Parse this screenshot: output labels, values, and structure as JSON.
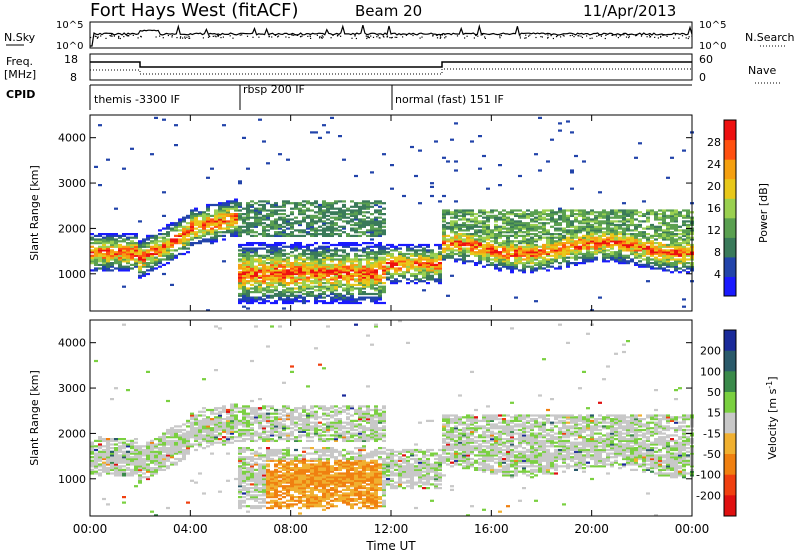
{
  "header": {
    "title": "Fort Hays West (fitACF)",
    "beam": "Beam 20",
    "date": "11/Apr/2013"
  },
  "noise_panel": {
    "left_label": "N.Sky",
    "right_label": "N.Search",
    "left_ticks": [
      "10^5",
      "10^0"
    ],
    "right_ticks": [
      "10^5",
      "10^0"
    ]
  },
  "freq_panel": {
    "left_label_1": "Freq.",
    "left_label_2": "[MHz]",
    "right_label": "Nave",
    "left_ticks": [
      "18",
      "8"
    ],
    "right_ticks": [
      "60",
      "0"
    ]
  },
  "cpid_panel": {
    "label": "CPID",
    "segments": [
      "themis -3300 IF",
      "rbsp 200 IF",
      "normal (fast) 151 IF"
    ]
  },
  "chart_data": [
    {
      "type": "heatmap",
      "title": "",
      "xlabel": "Time UT",
      "ylabel": "Slant Range [km]",
      "x_ticks": [
        "00:00",
        "04:00",
        "08:00",
        "12:00",
        "16:00",
        "20:00",
        "00:00"
      ],
      "y_ticks": [
        "1000",
        "2000",
        "3000",
        "4000"
      ],
      "xlim_hours": [
        0,
        24
      ],
      "ylim_km": [
        180,
        4500
      ],
      "colorbar": {
        "label": "Power [dB]",
        "tick_labels": [
          "4",
          "8",
          "12",
          "16",
          "20",
          "24",
          "28"
        ],
        "colors": [
          "#1a1aff",
          "#2244aa",
          "#3a7a5a",
          "#5aa050",
          "#9ad050",
          "#e8c81a",
          "#f5a010",
          "#ff5010",
          "#ee1010"
        ]
      }
    },
    {
      "type": "heatmap",
      "title": "",
      "xlabel": "Time UT",
      "ylabel": "Slant Range [km]",
      "x_ticks": [
        "00:00",
        "04:00",
        "08:00",
        "12:00",
        "16:00",
        "20:00",
        "00:00"
      ],
      "y_ticks": [
        "1000",
        "2000",
        "3000",
        "4000"
      ],
      "xlim_hours": [
        0,
        24
      ],
      "ylim_km": [
        180,
        4500
      ],
      "colorbar": {
        "label": "Velocity [m s^-1]",
        "tick_labels": [
          "200",
          "100",
          "50",
          "15",
          "-15",
          "-50",
          "-100",
          "-200"
        ],
        "colors": [
          "#1a2a9a",
          "#2a5a6a",
          "#3a8a4a",
          "#7ad040",
          "#c8c8c8",
          "#f0b030",
          "#f08010",
          "#f04010",
          "#e01010"
        ]
      }
    }
  ]
}
